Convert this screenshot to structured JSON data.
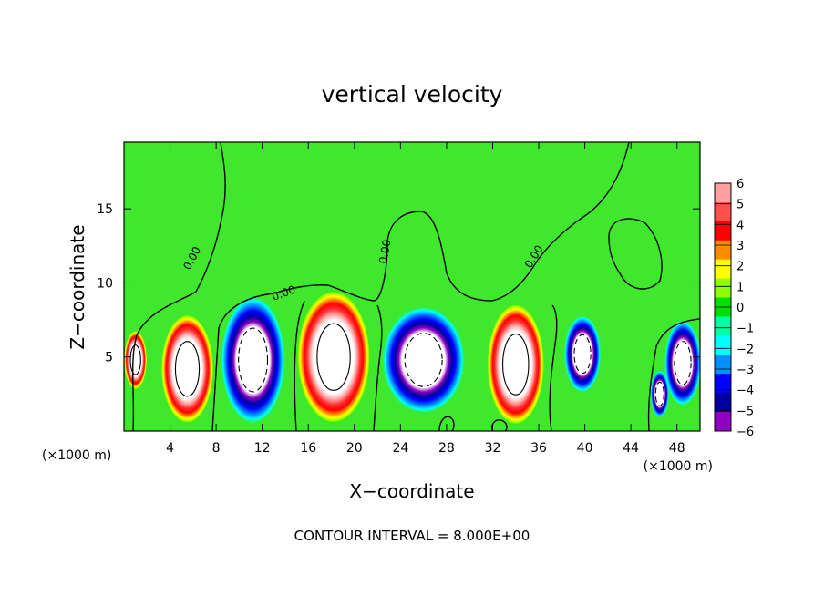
{
  "chart_data": {
    "type": "heatmap",
    "title": "vertical velocity",
    "xlabel": "X−coordinate",
    "ylabel": "Z−coordinate",
    "x_unit": "(×1000 m)",
    "y_unit": "(×1000 m)",
    "xlim": [
      0,
      50
    ],
    "ylim": [
      0,
      19.5
    ],
    "x_ticks": [
      "4",
      "8",
      "12",
      "16",
      "20",
      "24",
      "28",
      "32",
      "36",
      "40",
      "44",
      "48"
    ],
    "y_ticks": [
      "5",
      "10",
      "15"
    ],
    "colorbar": {
      "labels": [
        "6",
        "5",
        "4",
        "3",
        "2",
        "1",
        "0",
        "−1",
        "−2",
        "−3",
        "−4",
        "−5",
        "−6"
      ],
      "colors": [
        "#ffa0a0",
        "#ff5050",
        "#ff0000",
        "#ff8c00",
        "#ffff00",
        "#90ff00",
        "#00e000",
        "#00ffa0",
        "#00ffff",
        "#0090ff",
        "#0000ff",
        "#0000a0",
        "#9000c0"
      ]
    },
    "contour_label": "0.00",
    "cells": [
      {
        "x": 1.0,
        "z": 4.8,
        "w": 2.0,
        "h": 4.0,
        "sign": "up"
      },
      {
        "x": 5.5,
        "z": 4.2,
        "w": 4.6,
        "h": 7.4,
        "sign": "up"
      },
      {
        "x": 11.2,
        "z": 4.8,
        "w": 5.6,
        "h": 8.6,
        "sign": "down"
      },
      {
        "x": 18.2,
        "z": 5.0,
        "w": 6.4,
        "h": 9.0,
        "sign": "up"
      },
      {
        "x": 26.0,
        "z": 4.8,
        "w": 7.2,
        "h": 7.2,
        "sign": "down"
      },
      {
        "x": 34.0,
        "z": 4.5,
        "w": 5.0,
        "h": 8.2,
        "sign": "up"
      },
      {
        "x": 39.8,
        "z": 5.2,
        "w": 3.2,
        "h": 5.2,
        "sign": "down"
      },
      {
        "x": 46.5,
        "z": 2.5,
        "w": 1.6,
        "h": 3.2,
        "sign": "down"
      },
      {
        "x": 48.5,
        "z": 4.6,
        "w": 3.2,
        "h": 5.8,
        "sign": "down"
      }
    ],
    "footer": "CONTOUR INTERVAL =  8.000E+00"
  }
}
